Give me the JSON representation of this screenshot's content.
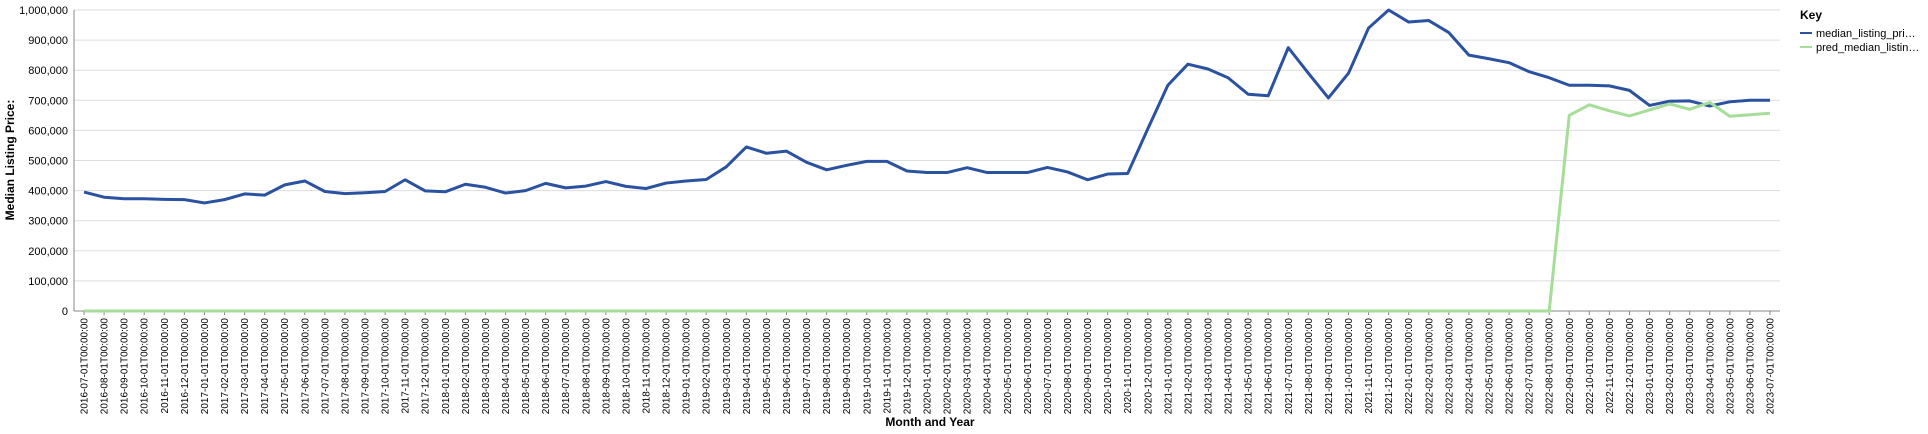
{
  "chart_data": {
    "type": "line",
    "x_label": "Month and Year",
    "y_label": "Median Listing Price:",
    "legend_title": "Key",
    "legend_position": "right",
    "grid": true,
    "categories": [
      "2016-07-01T00:00:00",
      "2016-08-01T00:00:00",
      "2016-09-01T00:00:00",
      "2016-10-01T00:00:00",
      "2016-11-01T00:00:00",
      "2016-12-01T00:00:00",
      "2017-01-01T00:00:00",
      "2017-02-01T00:00:00",
      "2017-03-01T00:00:00",
      "2017-04-01T00:00:00",
      "2017-05-01T00:00:00",
      "2017-06-01T00:00:00",
      "2017-07-01T00:00:00",
      "2017-08-01T00:00:00",
      "2017-09-01T00:00:00",
      "2017-10-01T00:00:00",
      "2017-11-01T00:00:00",
      "2017-12-01T00:00:00",
      "2018-01-01T00:00:00",
      "2018-02-01T00:00:00",
      "2018-03-01T00:00:00",
      "2018-04-01T00:00:00",
      "2018-05-01T00:00:00",
      "2018-06-01T00:00:00",
      "2018-07-01T00:00:00",
      "2018-08-01T00:00:00",
      "2018-09-01T00:00:00",
      "2018-10-01T00:00:00",
      "2018-11-01T00:00:00",
      "2018-12-01T00:00:00",
      "2019-01-01T00:00:00",
      "2019-02-01T00:00:00",
      "2019-03-01T00:00:00",
      "2019-04-01T00:00:00",
      "2019-05-01T00:00:00",
      "2019-06-01T00:00:00",
      "2019-07-01T00:00:00",
      "2019-08-01T00:00:00",
      "2019-09-01T00:00:00",
      "2019-10-01T00:00:00",
      "2019-11-01T00:00:00",
      "2019-12-01T00:00:00",
      "2020-01-01T00:00:00",
      "2020-02-01T00:00:00",
      "2020-03-01T00:00:00",
      "2020-04-01T00:00:00",
      "2020-05-01T00:00:00",
      "2020-06-01T00:00:00",
      "2020-07-01T00:00:00",
      "2020-08-01T00:00:00",
      "2020-09-01T00:00:00",
      "2020-10-01T00:00:00",
      "2020-11-01T00:00:00",
      "2020-12-01T00:00:00",
      "2021-01-01T00:00:00",
      "2021-02-01T00:00:00",
      "2021-03-01T00:00:00",
      "2021-04-01T00:00:00",
      "2021-05-01T00:00:00",
      "2021-06-01T00:00:00",
      "2021-07-01T00:00:00",
      "2021-08-01T00:00:00",
      "2021-09-01T00:00:00",
      "2021-10-01T00:00:00",
      "2021-11-01T00:00:00",
      "2021-12-01T00:00:00",
      "2022-01-01T00:00:00",
      "2022-02-01T00:00:00",
      "2022-03-01T00:00:00",
      "2022-04-01T00:00:00",
      "2022-05-01T00:00:00",
      "2022-06-01T00:00:00",
      "2022-07-01T00:00:00",
      "2022-08-01T00:00:00",
      "2022-09-01T00:00:00",
      "2022-10-01T00:00:00",
      "2022-11-01T00:00:00",
      "2022-12-01T00:00:00",
      "2023-01-01T00:00:00",
      "2023-02-01T00:00:00",
      "2023-03-01T00:00:00",
      "2023-04-01T00:00:00",
      "2023-05-01T00:00:00",
      "2023-06-01T00:00:00",
      "2023-07-01T00:00:00"
    ],
    "series": [
      {
        "name": "median_listing_pri…",
        "color": "#2a52a0",
        "values": [
          395000,
          378000,
          373000,
          373000,
          371000,
          370000,
          359000,
          370000,
          389000,
          385000,
          419000,
          432000,
          397000,
          390000,
          393000,
          397000,
          436000,
          399000,
          396000,
          421000,
          411000,
          392000,
          400000,
          424000,
          409000,
          415000,
          430000,
          414000,
          407000,
          425000,
          432000,
          437000,
          479000,
          545000,
          524000,
          531000,
          494000,
          469000,
          484000,
          497000,
          497000,
          465000,
          460000,
          460000,
          476000,
          460000,
          460000,
          460000,
          477000,
          462000,
          436000,
          455000,
          457000,
          605000,
          750000,
          820000,
          804000,
          775000,
          720000,
          715000,
          875000,
          790000,
          708000,
          790000,
          940000,
          1000000,
          960000,
          965000,
          925000,
          850000,
          838000,
          825000,
          795000,
          775000,
          750000,
          750000,
          748000,
          733000,
          683000,
          697000,
          698000,
          681000,
          695000,
          700000,
          700000
        ]
      },
      {
        "name": "pred_median_listin…",
        "color": "#a6dd98",
        "values": [
          0,
          0,
          0,
          0,
          0,
          0,
          0,
          0,
          0,
          0,
          0,
          0,
          0,
          0,
          0,
          0,
          0,
          0,
          0,
          0,
          0,
          0,
          0,
          0,
          0,
          0,
          0,
          0,
          0,
          0,
          0,
          0,
          0,
          0,
          0,
          0,
          0,
          0,
          0,
          0,
          0,
          0,
          0,
          0,
          0,
          0,
          0,
          0,
          0,
          0,
          0,
          0,
          0,
          0,
          0,
          0,
          0,
          0,
          0,
          0,
          0,
          0,
          0,
          0,
          0,
          0,
          0,
          0,
          0,
          0,
          0,
          0,
          0,
          0,
          650000,
          685000,
          665000,
          648000,
          668000,
          688000,
          670000,
          693000,
          647000,
          652000,
          657000
        ]
      }
    ],
    "ylim": [
      0,
      1000000
    ],
    "yticks": [
      0,
      {
        "value": 100000,
        "label": "100,000"
      },
      {
        "value": 200000,
        "label": "200,000"
      },
      {
        "value": 300000,
        "label": "300,000"
      },
      {
        "value": 400000,
        "label": "400,000"
      },
      {
        "value": 500000,
        "label": "500,000"
      },
      {
        "value": 600000,
        "label": "600,000"
      },
      {
        "value": 700000,
        "label": "700,000"
      },
      {
        "value": 800000,
        "label": "800,000"
      },
      {
        "value": 900000,
        "label": "900,000"
      },
      {
        "value": 1000000,
        "label": "1,000,000"
      }
    ]
  }
}
